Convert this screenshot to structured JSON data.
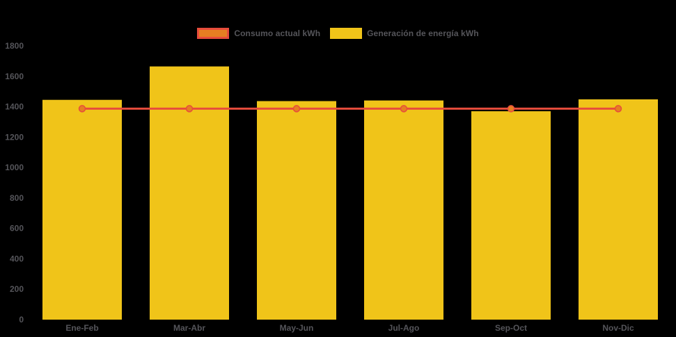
{
  "legend": {
    "items": [
      {
        "label": "Consumo actual kWh",
        "swatch": "line-swatch",
        "fill": "#e67e22",
        "border": "#e74c3c"
      },
      {
        "label": "Generación de energía kWh",
        "swatch": "bar-swatch",
        "fill": "#f0c419",
        "border": "#f0c419"
      }
    ]
  },
  "chart_data": {
    "type": "bar",
    "subtype": "bar-line-combo",
    "title": "",
    "xlabel": "",
    "ylabel": "",
    "categories": [
      "Ene-Feb",
      "Mar-Abr",
      "May-Jun",
      "Jul-Ago",
      "Sep-Oct",
      "Nov-Dic"
    ],
    "series": [
      {
        "name": "Generación de energía kWh",
        "type": "bar",
        "color": "#f0c419",
        "values": [
          1445,
          1665,
          1437,
          1441,
          1370,
          1448
        ]
      },
      {
        "name": "Consumo actual kWh",
        "type": "line",
        "color": "#e74c3c",
        "marker_color": "#e67e22",
        "values": [
          1387,
          1387,
          1387,
          1387,
          1387,
          1387
        ]
      }
    ],
    "ylim": [
      0,
      1800
    ],
    "yticks": [
      0,
      200,
      400,
      600,
      800,
      1000,
      1200,
      1400,
      1600,
      1800
    ],
    "grid": false,
    "legend_position": "top-center",
    "background_color": "#000000",
    "text_color": "#55555a"
  }
}
